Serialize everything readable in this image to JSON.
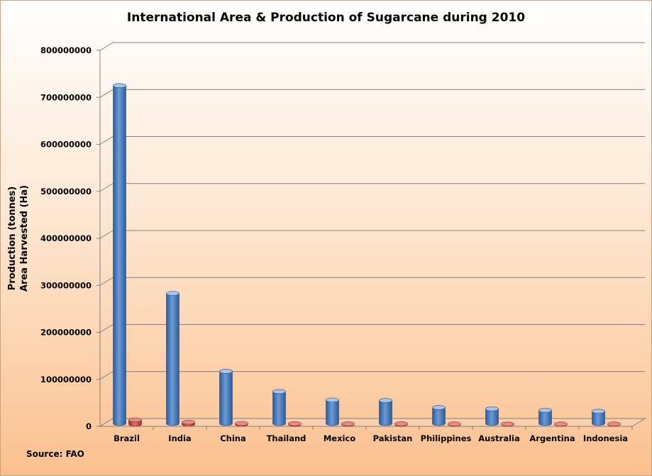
{
  "chart_data": {
    "type": "bar",
    "title": "International Area & Production of Sugarcane during 2010",
    "ylabel": [
      "Production (tonnes)",
      "Area Harvested (Ha)"
    ],
    "xlabel": "",
    "source": "Source: FAO",
    "categories": [
      "Brazil",
      "India",
      "China",
      "Thailand",
      "Mexico",
      "Pakistan",
      "Philippines",
      "Australia",
      "Argentina",
      "Indonesia"
    ],
    "series": [
      {
        "name": "Production (tonnes)",
        "color": "#4f81bd",
        "values": [
          719000000,
          277000000,
          111000000,
          68000000,
          50000000,
          49000000,
          34000000,
          31000000,
          28000000,
          26000000
        ]
      },
      {
        "name": "Area Harvested (Ha)",
        "color": "#c0504d",
        "values": [
          9100000,
          4200000,
          1700000,
          1000000,
          700000,
          900000,
          400000,
          300000,
          400000,
          400000
        ]
      }
    ],
    "yticks": [
      "0",
      "100000000",
      "200000000",
      "300000000",
      "400000000",
      "500000000",
      "600000000",
      "700000000",
      "800000000"
    ],
    "ylim": [
      0,
      800000000
    ],
    "grid": true,
    "legend": "none"
  }
}
